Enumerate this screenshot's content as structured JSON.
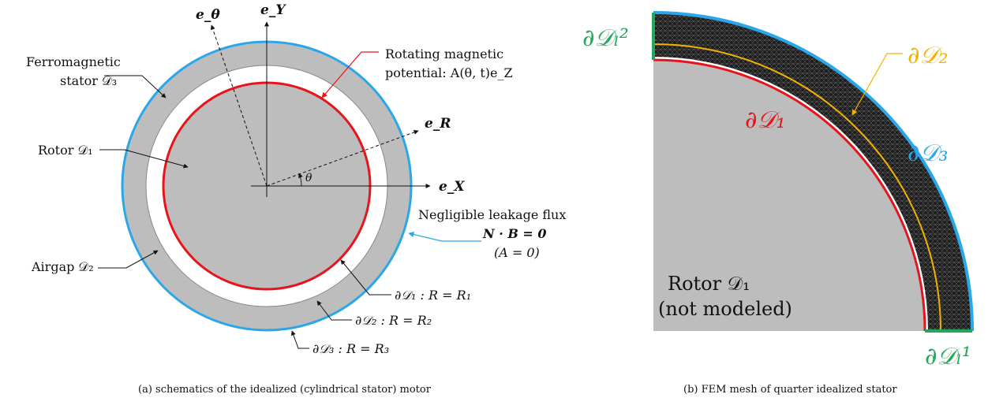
{
  "figure_a": {
    "caption": "(a) schematics of the idealized (cylindrical stator) motor",
    "stator_label_1": "Ferromagnetic",
    "stator_label_2": "stator 𝒟₃",
    "rotor_label": "Rotor 𝒟₁",
    "airgap_label": "Airgap 𝒟₂",
    "potential_label_1": "Rotating magnetic",
    "potential_label_2": "potential: A(θ, t)e_Z",
    "leakage_label": "Negligible leakage flux",
    "leakage_eq_1": "N · B = 0",
    "leakage_eq_2": "(A = 0)",
    "boundary_1": "∂𝒟₁ : R = R₁",
    "boundary_2": "∂𝒟₂ : R = R₂",
    "boundary_3": "∂𝒟₃ : R = R₃",
    "axis_ex": "e_X",
    "axis_ey": "e_Y",
    "axis_er": "e_R",
    "axis_etheta": "e_θ",
    "angle": "θ",
    "colors": {
      "stator_boundary": "#2aa7e8",
      "rotor_boundary": "#e8141c",
      "fill": "#bdbdbd"
    }
  },
  "figure_b": {
    "caption": "(b) FEM mesh of quarter idealized stator",
    "rotor_label_1": "Rotor 𝒟₁",
    "rotor_label_2": "(not modeled)",
    "boundary_d1": "∂𝒟₁",
    "boundary_d2": "∂𝒟₂",
    "boundary_d3": "∂𝒟₃",
    "boundary_l2": "∂𝒟ₗ²",
    "boundary_l1": "∂𝒟ₗ¹",
    "colors": {
      "d1": "#e8141c",
      "d2": "#f2b200",
      "d3": "#2aa7e8",
      "leak": "#22a85a",
      "mesh": "#1a1a1a"
    }
  }
}
